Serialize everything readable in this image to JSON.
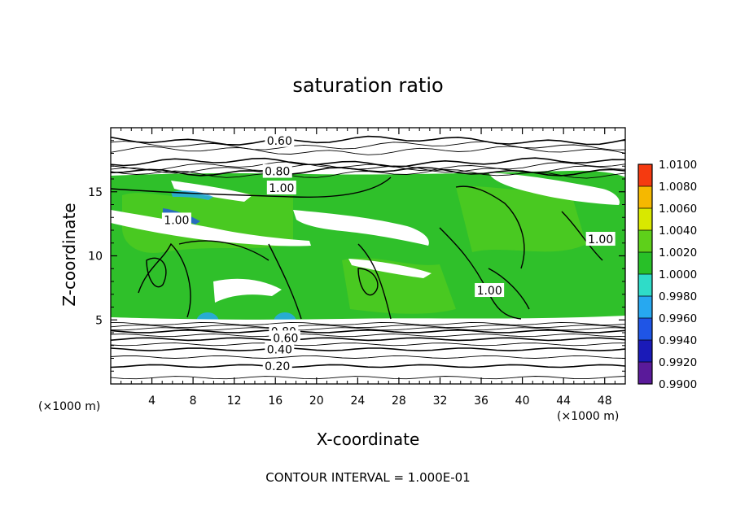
{
  "chart_data": {
    "type": "contour",
    "title": "saturation ratio",
    "xlabel": "X-coordinate",
    "ylabel": "Z-coordinate",
    "x_unit_left": "(×1000 m)",
    "x_unit_right": "(×1000 m)",
    "xlim": [
      0,
      50
    ],
    "ylim": [
      0,
      20
    ],
    "x_ticks": [
      4,
      8,
      12,
      16,
      20,
      24,
      28,
      32,
      36,
      40,
      44,
      48
    ],
    "x_tick_labels": [
      "4",
      "8",
      "12",
      "16",
      "20",
      "24",
      "28",
      "32",
      "36",
      "40",
      "44",
      "48"
    ],
    "y_ticks": [
      5,
      10,
      15
    ],
    "y_tick_labels": [
      "5",
      "10",
      "15"
    ],
    "colorbar": {
      "levels": [
        "0.9900",
        "0.9920",
        "0.9940",
        "0.9960",
        "0.9980",
        "1.0000",
        "1.0020",
        "1.0040",
        "1.0060",
        "1.0080",
        "1.0100"
      ],
      "colors": [
        "#5a1a9a",
        "#1a1ab8",
        "#1f55e6",
        "#27a8f0",
        "#2fdcc8",
        "#28c028",
        "#5ed01a",
        "#d8e800",
        "#f5b800",
        "#f53a10",
        "#f58a8a"
      ]
    },
    "contour_labels": [
      {
        "text": "0.60",
        "x": 16.4,
        "z": 19.0
      },
      {
        "text": "0.80",
        "x": 16.2,
        "z": 16.6
      },
      {
        "text": "1.00",
        "x": 16.6,
        "z": 15.3
      },
      {
        "text": "1.00",
        "x": 6.4,
        "z": 12.8
      },
      {
        "text": "1.00",
        "x": 36.8,
        "z": 7.3
      },
      {
        "text": "1.00",
        "x": 47.6,
        "z": 11.3
      },
      {
        "text": "0.80",
        "x": 16.8,
        "z": 4.1
      },
      {
        "text": "0.60",
        "x": 17.0,
        "z": 3.6
      },
      {
        "text": "0.40",
        "x": 16.4,
        "z": 2.7
      },
      {
        "text": "0.20",
        "x": 16.2,
        "z": 1.4
      }
    ],
    "contour_levels_z": [
      0.5,
      1.4,
      2.1,
      2.7,
      3.1,
      3.5,
      3.8,
      4.1,
      4.3,
      4.5,
      4.7,
      16.4,
      16.6,
      16.8,
      17.0,
      17.3,
      18.2,
      18.6,
      19.0
    ],
    "annotation": "CONTOUR INTERVAL = 1.000E-01"
  }
}
